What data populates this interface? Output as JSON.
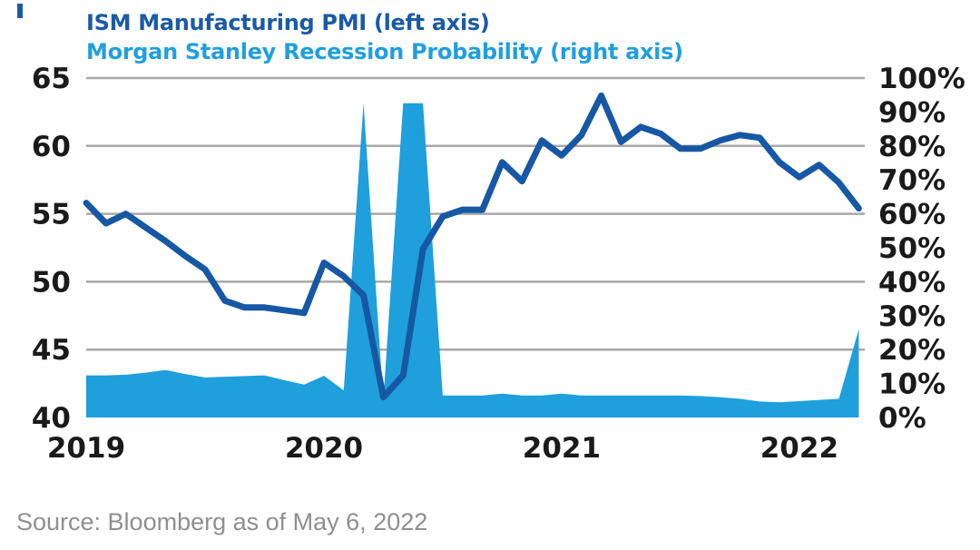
{
  "figure": {
    "title_line1": "ISM Manufacturing PMI (left axis)",
    "title_line2": "Morgan Stanley Recession Probability (right axis)",
    "source": "Source: Bloomberg as of May 6, 2022"
  },
  "colors": {
    "pmi_line": "#1658A4",
    "title_dark": "#1B5AA6",
    "recession_area": "#1F9FDC",
    "subtitle_blue": "#219FDC",
    "gridline": "#A8A8A8",
    "axis_text": "#1A1A1A",
    "source_text": "#8F8F8F",
    "accent_bar": "#1B5AA6"
  },
  "chart_data": {
    "type": "combo",
    "title": "ISM Manufacturing PMI (left axis)",
    "subtitle": "Morgan Stanley Recession Probability (right axis)",
    "x_unit": "month",
    "x_start": "2019-01",
    "x_end": "2022-04",
    "x_tick_labels": [
      "2019",
      "2020",
      "2021",
      "2022"
    ],
    "grid": true,
    "legend_position": "title-as-legend",
    "left_axis": {
      "label": "ISM Manufacturing PMI",
      "range": [
        40,
        65
      ],
      "ticks": [
        65,
        60,
        55,
        50,
        45,
        40
      ]
    },
    "right_axis": {
      "label": "Morgan Stanley Recession Probability",
      "range": [
        0,
        100
      ],
      "ticks": [
        "100%",
        "90%",
        "80%",
        "70%",
        "60%",
        "50%",
        "40%",
        "30%",
        "20%",
        "10%",
        "0%"
      ]
    },
    "series": [
      {
        "name": "ISM Manufacturing PMI",
        "type": "line",
        "axis": "left",
        "values": [
          55.8,
          54.3,
          55.0,
          54.0,
          53.0,
          51.9,
          50.9,
          48.6,
          48.1,
          48.1,
          47.9,
          47.7,
          51.4,
          50.4,
          49.0,
          41.5,
          43.1,
          52.4,
          54.8,
          55.3,
          55.3,
          58.8,
          57.4,
          60.4,
          59.3,
          60.8,
          63.7,
          60.3,
          61.4,
          60.9,
          59.8,
          59.8,
          60.4,
          60.8,
          60.6,
          58.8,
          57.7,
          58.6,
          57.3,
          55.4
        ]
      },
      {
        "name": "Morgan Stanley Recession Probability",
        "type": "area",
        "axis": "right",
        "values": [
          12.4,
          12.4,
          12.6,
          13.2,
          14.0,
          12.8,
          11.8,
          12.0,
          12.2,
          12.4,
          11.0,
          9.7,
          12.3,
          8.0,
          92.6,
          5.0,
          92.6,
          92.6,
          6.5,
          6.5,
          6.5,
          7.0,
          6.5,
          6.5,
          7.0,
          6.5,
          6.5,
          6.5,
          6.5,
          6.5,
          6.5,
          6.3,
          6.0,
          5.5,
          4.7,
          4.5,
          4.8,
          5.2,
          5.5,
          26.0
        ]
      }
    ]
  }
}
